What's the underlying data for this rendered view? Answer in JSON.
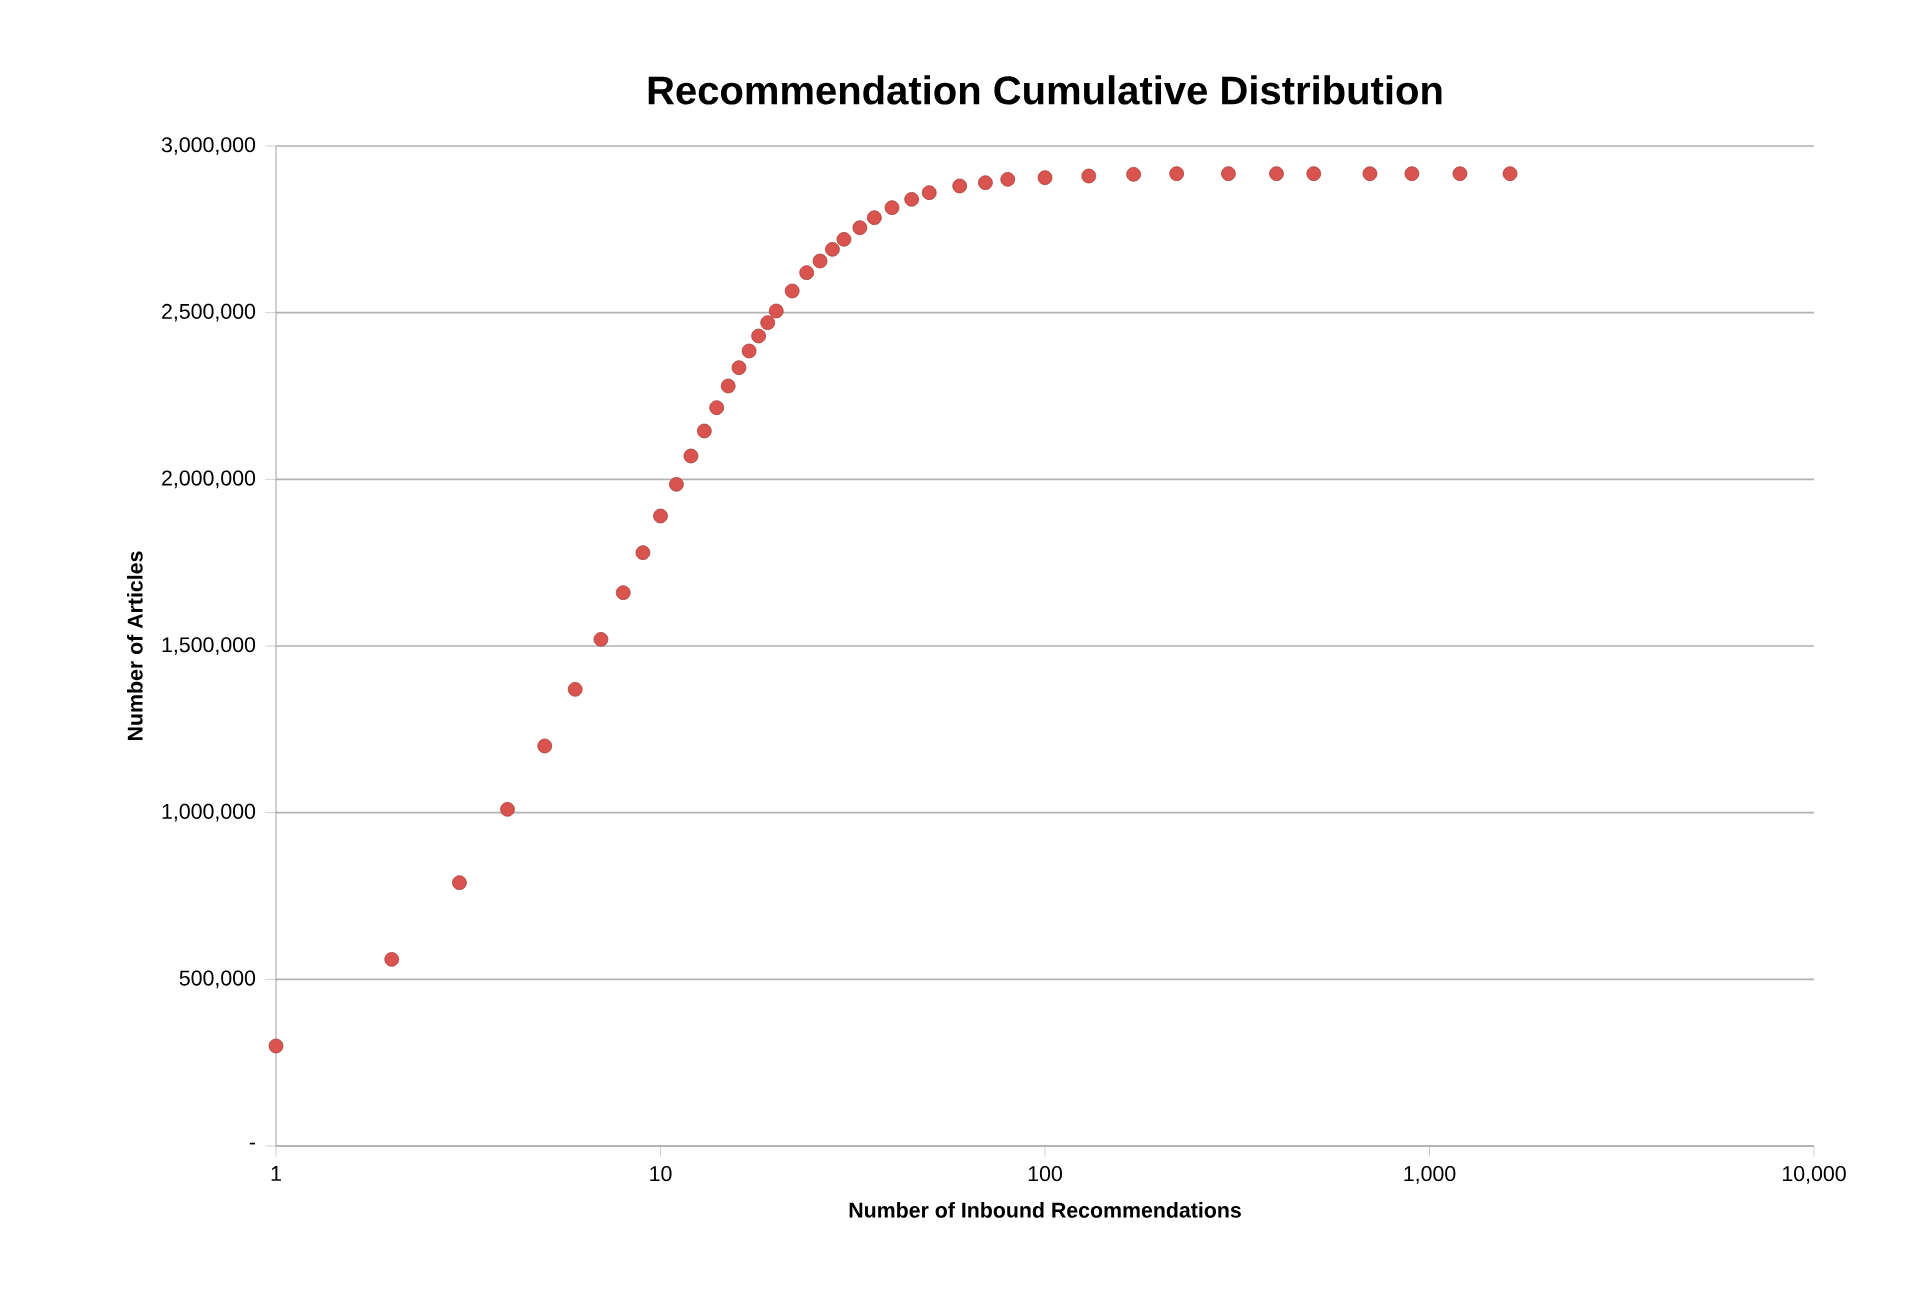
{
  "chart_data": {
    "type": "scatter",
    "title": "Recommendation Cumulative Distribution",
    "xlabel": "Number of Inbound Recommendations",
    "ylabel": "Number of Articles",
    "log": "x",
    "grid": "y",
    "marker": "circle",
    "xlim": [
      1,
      10000
    ],
    "xticks": [
      1,
      10,
      100,
      {
        "value": 1000,
        "label": "1,000"
      },
      {
        "value": 10000,
        "label": "10,000"
      }
    ],
    "ylim": [
      0,
      3000000
    ],
    "yticks": [
      {
        "value": 0,
        "label": "-"
      },
      {
        "value": 500000,
        "label": "500,000"
      },
      {
        "value": 1000000,
        "label": "1,000,000"
      },
      {
        "value": 1500000,
        "label": "1,500,000"
      },
      {
        "value": 2000000,
        "label": "2,000,000"
      },
      {
        "value": 2500000,
        "label": "2,500,000"
      },
      {
        "value": 3000000,
        "label": "3,000,000"
      }
    ],
    "series": [
      {
        "color": "#d9534f",
        "x": [
          1,
          2,
          3,
          4,
          5,
          6,
          7,
          8,
          9,
          10,
          11,
          12,
          13,
          14,
          15,
          16,
          17,
          18,
          19,
          20,
          22,
          24,
          26,
          28,
          30,
          33,
          36,
          40,
          45,
          50,
          60,
          70,
          80,
          100,
          130,
          170,
          220,
          300,
          400,
          500,
          700,
          900,
          1200,
          1620
        ],
        "values": [
          300000,
          560000,
          790000,
          1010000,
          1200000,
          1370000,
          1520000,
          1660000,
          1780000,
          1890000,
          1985000,
          2070000,
          2145000,
          2215000,
          2280000,
          2335000,
          2385000,
          2430000,
          2470000,
          2505000,
          2565000,
          2620000,
          2655000,
          2690000,
          2720000,
          2755000,
          2785000,
          2815000,
          2840000,
          2860000,
          2880000,
          2890000,
          2900000,
          2905000,
          2910000,
          2915000,
          2917000,
          2917000,
          2917000,
          2917000,
          2917000,
          2917000,
          2917000,
          2917000
        ]
      }
    ]
  }
}
